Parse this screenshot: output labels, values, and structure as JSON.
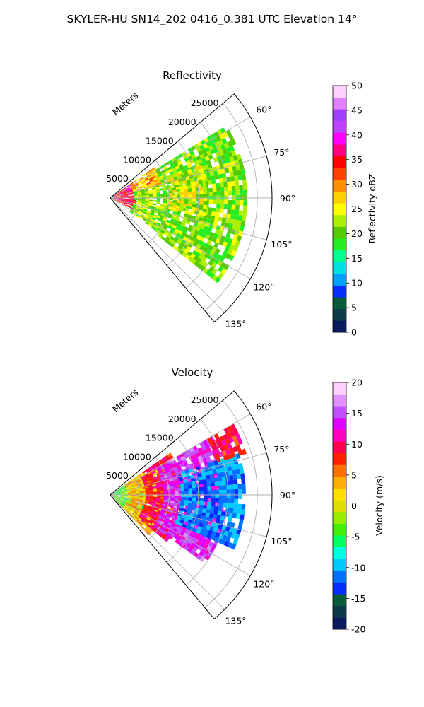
{
  "figure_title": "SKYLER-HU  SN14_202  0416_0.381 UTC Elevation 14°",
  "chart_data": [
    {
      "type": "heatmap",
      "panel": "reflectivity",
      "title": "Reflectivity",
      "range_label": "Meters",
      "range_ticks": [
        5000,
        10000,
        15000,
        20000,
        25000
      ],
      "range_max": 27500,
      "azimuth_range": [
        50,
        140
      ],
      "azimuth_ticks": [
        "60°",
        "75°",
        "90°",
        "105°",
        "120°",
        "135°"
      ],
      "azimuth_tick_values": [
        60,
        75,
        90,
        105,
        120,
        135
      ],
      "grid": true,
      "colorbar": {
        "label": "Reflectivity dBZ",
        "min": 0,
        "max": 50,
        "ticks": [
          0,
          5,
          10,
          15,
          20,
          25,
          30,
          35,
          40,
          45,
          50
        ],
        "colors": [
          "#0a1a5c",
          "#0d3a4a",
          "#0b5c3a",
          "#0a2cff",
          "#00a0ff",
          "#00e0e0",
          "#00ff90",
          "#22ee22",
          "#55cc00",
          "#aaee00",
          "#ffff00",
          "#ffd000",
          "#ff9000",
          "#ff4000",
          "#ff0000",
          "#ff0080",
          "#ff00ff",
          "#c040ff",
          "#a040ff",
          "#e080ff",
          "#ffd0ff"
        ]
      },
      "echo_regions": [
        {
          "r": [
            500,
            4000
          ],
          "az": [
            55,
            115
          ],
          "value": 35
        },
        {
          "r": [
            4000,
            9000
          ],
          "az": [
            55,
            75
          ],
          "value": 28
        },
        {
          "r": [
            4000,
            9000
          ],
          "az": [
            75,
            125
          ],
          "value": 22
        },
        {
          "r": [
            9000,
            23000
          ],
          "az": [
            58,
            128
          ],
          "value": 21
        },
        {
          "r": [
            10000,
            16000
          ],
          "az": [
            70,
            100
          ],
          "value": 24
        }
      ]
    },
    {
      "type": "heatmap",
      "panel": "velocity",
      "title": "Velocity",
      "range_label": "Meters",
      "range_ticks": [
        5000,
        10000,
        15000,
        20000,
        25000
      ],
      "range_max": 27500,
      "azimuth_range": [
        50,
        140
      ],
      "azimuth_ticks": [
        "60°",
        "75°",
        "90°",
        "105°",
        "120°",
        "135°"
      ],
      "azimuth_tick_values": [
        60,
        75,
        90,
        105,
        120,
        135
      ],
      "grid": true,
      "colorbar": {
        "label": "Velocity (m/s)",
        "min": -20,
        "max": 20,
        "ticks": [
          -20,
          -15,
          -10,
          -5,
          0,
          5,
          10,
          15,
          20
        ],
        "colors": [
          "#0a1a5c",
          "#0d3a4a",
          "#0b5c3a",
          "#0a2cff",
          "#0070ff",
          "#00c8ff",
          "#00ffe0",
          "#00ff60",
          "#44ee00",
          "#99ee00",
          "#dddd00",
          "#ffe000",
          "#ffb000",
          "#ff7000",
          "#ff2000",
          "#ff0050",
          "#ff00c0",
          "#e000ff",
          "#c050ff",
          "#e090ff",
          "#ffd0ff"
        ]
      },
      "echo_regions": [
        {
          "r": [
            500,
            6000
          ],
          "az": [
            55,
            135
          ],
          "value": -4
        },
        {
          "r": [
            3000,
            9000
          ],
          "az": [
            55,
            135
          ],
          "value": 3
        },
        {
          "r": [
            6000,
            12000
          ],
          "az": [
            55,
            128
          ],
          "value": 9
        },
        {
          "r": [
            9000,
            20000
          ],
          "az": [
            60,
            125
          ],
          "value": 14
        },
        {
          "r": [
            12000,
            23000
          ],
          "az": [
            72,
            112
          ],
          "value": -11
        },
        {
          "r": [
            19000,
            24000
          ],
          "az": [
            60,
            72
          ],
          "value": 9
        }
      ]
    }
  ]
}
